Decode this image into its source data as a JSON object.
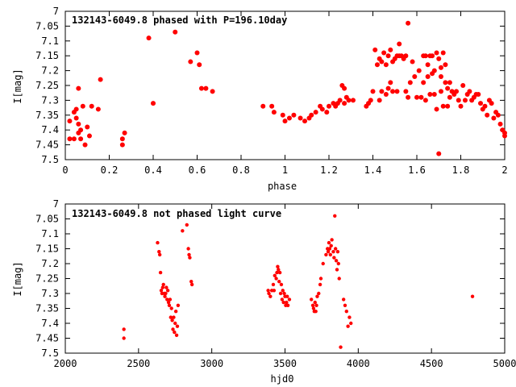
{
  "chart_data": [
    {
      "type": "scatter",
      "title": "132143-6049.8 phased with P=196.10day",
      "xlabel": "phase",
      "ylabel": "I[mag]",
      "xlim": [
        0,
        2
      ],
      "ylim": [
        7.5,
        7
      ],
      "y_inverted": true,
      "grid": false,
      "marker_color": "#ff0000",
      "xticks": [
        "0",
        "0.2",
        "0.4",
        "0.6",
        "0.8",
        "1",
        "1.2",
        "1.4",
        "1.6",
        "1.8",
        "2"
      ],
      "yticks": [
        "7",
        "7.05",
        "7.1",
        "7.15",
        "7.2",
        "7.25",
        "7.3",
        "7.35",
        "7.4",
        "7.45",
        "7.5"
      ],
      "points": [
        [
          0.02,
          7.37
        ],
        [
          0.02,
          7.43
        ],
        [
          0.04,
          7.34
        ],
        [
          0.04,
          7.43
        ],
        [
          0.05,
          7.33
        ],
        [
          0.05,
          7.36
        ],
        [
          0.06,
          7.26
        ],
        [
          0.06,
          7.41
        ],
        [
          0.06,
          7.38
        ],
        [
          0.07,
          7.4
        ],
        [
          0.07,
          7.43
        ],
        [
          0.08,
          7.32
        ],
        [
          0.09,
          7.45
        ],
        [
          0.1,
          7.39
        ],
        [
          0.11,
          7.42
        ],
        [
          0.12,
          7.32
        ],
        [
          0.15,
          7.33
        ],
        [
          0.16,
          7.23
        ],
        [
          0.26,
          7.45
        ],
        [
          0.26,
          7.43
        ],
        [
          0.27,
          7.41
        ],
        [
          0.38,
          7.09
        ],
        [
          0.4,
          7.31
        ],
        [
          0.5,
          7.07
        ],
        [
          0.57,
          7.17
        ],
        [
          0.6,
          7.14
        ],
        [
          0.61,
          7.18
        ],
        [
          0.62,
          7.26
        ],
        [
          0.64,
          7.26
        ],
        [
          0.67,
          7.27
        ],
        [
          0.9,
          7.32
        ],
        [
          0.94,
          7.32
        ],
        [
          0.95,
          7.34
        ],
        [
          0.99,
          7.35
        ],
        [
          1.0,
          7.37
        ],
        [
          1.02,
          7.36
        ],
        [
          1.04,
          7.35
        ],
        [
          1.07,
          7.36
        ],
        [
          1.09,
          7.37
        ],
        [
          1.11,
          7.36
        ],
        [
          1.12,
          7.35
        ],
        [
          1.14,
          7.34
        ],
        [
          1.16,
          7.32
        ],
        [
          1.17,
          7.33
        ],
        [
          1.19,
          7.34
        ],
        [
          1.2,
          7.32
        ],
        [
          1.22,
          7.31
        ],
        [
          1.23,
          7.32
        ],
        [
          1.24,
          7.31
        ],
        [
          1.25,
          7.3
        ],
        [
          1.26,
          7.25
        ],
        [
          1.27,
          7.26
        ],
        [
          1.27,
          7.31
        ],
        [
          1.28,
          7.29
        ],
        [
          1.29,
          7.3
        ],
        [
          1.31,
          7.3
        ],
        [
          1.37,
          7.32
        ],
        [
          1.38,
          7.31
        ],
        [
          1.39,
          7.3
        ],
        [
          1.4,
          7.27
        ],
        [
          1.41,
          7.13
        ],
        [
          1.42,
          7.18
        ],
        [
          1.43,
          7.16
        ],
        [
          1.43,
          7.3
        ],
        [
          1.44,
          7.17
        ],
        [
          1.44,
          7.27
        ],
        [
          1.45,
          7.14
        ],
        [
          1.46,
          7.18
        ],
        [
          1.46,
          7.28
        ],
        [
          1.47,
          7.15
        ],
        [
          1.47,
          7.26
        ],
        [
          1.48,
          7.13
        ],
        [
          1.48,
          7.24
        ],
        [
          1.49,
          7.17
        ],
        [
          1.49,
          7.27
        ],
        [
          1.5,
          7.16
        ],
        [
          1.51,
          7.15
        ],
        [
          1.51,
          7.27
        ],
        [
          1.52,
          7.11
        ],
        [
          1.52,
          7.15
        ],
        [
          1.53,
          7.15
        ],
        [
          1.54,
          7.16
        ],
        [
          1.55,
          7.15
        ],
        [
          1.55,
          7.27
        ],
        [
          1.56,
          7.04
        ],
        [
          1.56,
          7.29
        ],
        [
          1.57,
          7.24
        ],
        [
          1.58,
          7.17
        ],
        [
          1.59,
          7.22
        ],
        [
          1.6,
          7.29
        ],
        [
          1.61,
          7.2
        ],
        [
          1.62,
          7.29
        ],
        [
          1.63,
          7.15
        ],
        [
          1.63,
          7.24
        ],
        [
          1.64,
          7.15
        ],
        [
          1.64,
          7.3
        ],
        [
          1.65,
          7.22
        ],
        [
          1.65,
          7.18
        ],
        [
          1.66,
          7.15
        ],
        [
          1.66,
          7.28
        ],
        [
          1.67,
          7.21
        ],
        [
          1.67,
          7.15
        ],
        [
          1.68,
          7.2
        ],
        [
          1.68,
          7.28
        ],
        [
          1.69,
          7.14
        ],
        [
          1.69,
          7.33
        ],
        [
          1.7,
          7.16
        ],
        [
          1.7,
          7.48
        ],
        [
          1.71,
          7.27
        ],
        [
          1.71,
          7.22
        ],
        [
          1.71,
          7.19
        ],
        [
          1.72,
          7.14
        ],
        [
          1.72,
          7.32
        ],
        [
          1.73,
          7.18
        ],
        [
          1.73,
          7.24
        ],
        [
          1.74,
          7.26
        ],
        [
          1.74,
          7.32
        ],
        [
          1.75,
          7.24
        ],
        [
          1.75,
          7.29
        ],
        [
          1.76,
          7.27
        ],
        [
          1.77,
          7.28
        ],
        [
          1.78,
          7.27
        ],
        [
          1.79,
          7.3
        ],
        [
          1.8,
          7.32
        ],
        [
          1.81,
          7.25
        ],
        [
          1.82,
          7.3
        ],
        [
          1.83,
          7.28
        ],
        [
          1.84,
          7.27
        ],
        [
          1.85,
          7.3
        ],
        [
          1.86,
          7.29
        ],
        [
          1.87,
          7.28
        ],
        [
          1.88,
          7.28
        ],
        [
          1.89,
          7.31
        ],
        [
          1.9,
          7.33
        ],
        [
          1.91,
          7.32
        ],
        [
          1.92,
          7.35
        ],
        [
          1.93,
          7.3
        ],
        [
          1.94,
          7.31
        ],
        [
          1.95,
          7.36
        ],
        [
          1.96,
          7.34
        ],
        [
          1.97,
          7.35
        ],
        [
          1.98,
          7.38
        ],
        [
          1.99,
          7.4
        ],
        [
          2.0,
          7.42
        ],
        [
          2.0,
          7.41
        ]
      ]
    },
    {
      "type": "scatter",
      "title": "132143-6049.8 not phased light curve",
      "xlabel": "hjd0",
      "ylabel": "I[mag]",
      "xlim": [
        2000,
        5000
      ],
      "ylim": [
        7.5,
        7
      ],
      "y_inverted": true,
      "grid": false,
      "marker_color": "#ff0000",
      "xticks": [
        "2000",
        "2500",
        "3000",
        "3500",
        "4000",
        "4500",
        "5000"
      ],
      "yticks": [
        "7",
        "7.05",
        "7.1",
        "7.15",
        "7.2",
        "7.25",
        "7.3",
        "7.35",
        "7.4",
        "7.45",
        "7.5"
      ],
      "points": [
        [
          2400,
          7.42
        ],
        [
          2400,
          7.45
        ],
        [
          2630,
          7.13
        ],
        [
          2640,
          7.16
        ],
        [
          2645,
          7.17
        ],
        [
          2650,
          7.23
        ],
        [
          2655,
          7.29
        ],
        [
          2660,
          7.3
        ],
        [
          2665,
          7.28
        ],
        [
          2670,
          7.27
        ],
        [
          2675,
          7.3
        ],
        [
          2680,
          7.31
        ],
        [
          2685,
          7.3
        ],
        [
          2690,
          7.28
        ],
        [
          2695,
          7.32
        ],
        [
          2700,
          7.29
        ],
        [
          2705,
          7.33
        ],
        [
          2710,
          7.34
        ],
        [
          2715,
          7.32
        ],
        [
          2720,
          7.38
        ],
        [
          2725,
          7.35
        ],
        [
          2730,
          7.39
        ],
        [
          2735,
          7.42
        ],
        [
          2740,
          7.38
        ],
        [
          2745,
          7.43
        ],
        [
          2750,
          7.4
        ],
        [
          2755,
          7.36
        ],
        [
          2760,
          7.44
        ],
        [
          2765,
          7.41
        ],
        [
          2770,
          7.34
        ],
        [
          2800,
          7.09
        ],
        [
          2830,
          7.07
        ],
        [
          2840,
          7.15
        ],
        [
          2845,
          7.17
        ],
        [
          2850,
          7.18
        ],
        [
          2860,
          7.26
        ],
        [
          2865,
          7.27
        ],
        [
          3385,
          7.29
        ],
        [
          3390,
          7.3
        ],
        [
          3400,
          7.31
        ],
        [
          3410,
          7.29
        ],
        [
          3420,
          7.27
        ],
        [
          3425,
          7.29
        ],
        [
          3430,
          7.24
        ],
        [
          3440,
          7.25
        ],
        [
          3445,
          7.23
        ],
        [
          3450,
          7.21
        ],
        [
          3455,
          7.22
        ],
        [
          3460,
          7.26
        ],
        [
          3465,
          7.23
        ],
        [
          3470,
          7.3
        ],
        [
          3475,
          7.27
        ],
        [
          3480,
          7.32
        ],
        [
          3485,
          7.29
        ],
        [
          3490,
          7.33
        ],
        [
          3495,
          7.3
        ],
        [
          3500,
          7.31
        ],
        [
          3505,
          7.34
        ],
        [
          3510,
          7.33
        ],
        [
          3515,
          7.31
        ],
        [
          3520,
          7.34
        ],
        [
          3530,
          7.32
        ],
        [
          3680,
          7.32
        ],
        [
          3690,
          7.34
        ],
        [
          3695,
          7.35
        ],
        [
          3700,
          7.36
        ],
        [
          3705,
          7.33
        ],
        [
          3710,
          7.36
        ],
        [
          3715,
          7.34
        ],
        [
          3720,
          7.31
        ],
        [
          3730,
          7.3
        ],
        [
          3740,
          7.27
        ],
        [
          3745,
          7.25
        ],
        [
          3760,
          7.2
        ],
        [
          3780,
          7.17
        ],
        [
          3790,
          7.15
        ],
        [
          3795,
          7.16
        ],
        [
          3800,
          7.13
        ],
        [
          3805,
          7.15
        ],
        [
          3810,
          7.17
        ],
        [
          3815,
          7.14
        ],
        [
          3820,
          7.12
        ],
        [
          3830,
          7.16
        ],
        [
          3835,
          7.18
        ],
        [
          3840,
          7.04
        ],
        [
          3845,
          7.15
        ],
        [
          3850,
          7.19
        ],
        [
          3855,
          7.22
        ],
        [
          3860,
          7.16
        ],
        [
          3865,
          7.2
        ],
        [
          3870,
          7.25
        ],
        [
          3880,
          7.48
        ],
        [
          3900,
          7.32
        ],
        [
          3910,
          7.34
        ],
        [
          3920,
          7.36
        ],
        [
          3930,
          7.41
        ],
        [
          3940,
          7.38
        ],
        [
          3950,
          7.4
        ],
        [
          4780,
          7.31
        ]
      ]
    }
  ]
}
